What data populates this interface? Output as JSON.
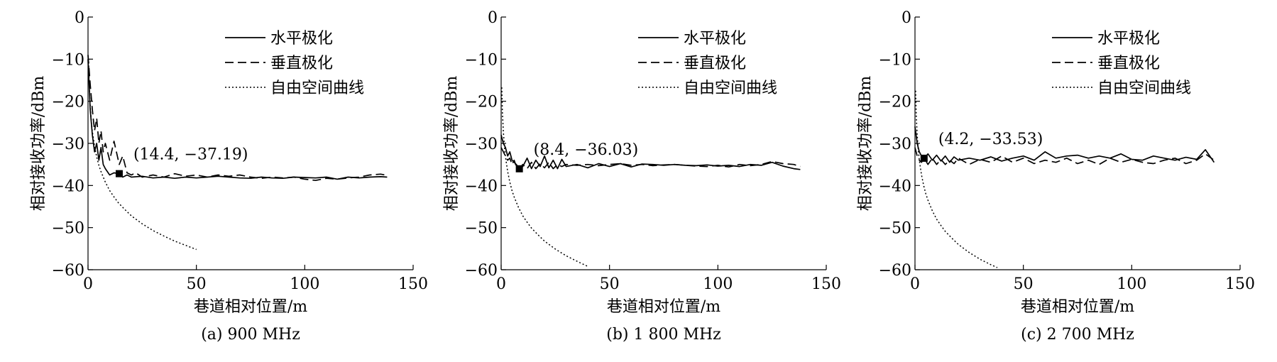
{
  "chart_data": [
    {
      "type": "line",
      "caption": "(a)  900 MHz",
      "xlabel": "巷道相对位置/m",
      "ylabel": "相对接收功率/dBm",
      "xlim": [
        0,
        150
      ],
      "ylim": [
        -60,
        0
      ],
      "xticks": [
        "0",
        "50",
        "100",
        "150"
      ],
      "yticks": [
        "0",
        "−10",
        "−20",
        "−30",
        "−40",
        "−50",
        "−60"
      ],
      "legend_position": "top-right",
      "annotation": {
        "text": "(14.4, −37.19)",
        "x": 14.4,
        "y": -37.19
      },
      "series": [
        {
          "name": "水平极化",
          "style": "solid",
          "x": [
            0,
            1,
            2,
            3,
            4,
            5,
            6,
            7,
            8,
            10,
            12,
            14.4,
            16,
            18,
            20,
            25,
            30,
            35,
            40,
            45,
            50,
            55,
            60,
            65,
            70,
            75,
            80,
            85,
            90,
            95,
            100,
            105,
            110,
            115,
            120,
            125,
            130,
            135,
            138
          ],
          "y": [
            -10,
            -22,
            -28,
            -32,
            -30,
            -34,
            -31,
            -35,
            -36,
            -37.5,
            -37,
            -37.19,
            -38,
            -37.5,
            -38,
            -37.8,
            -38.2,
            -38,
            -38.3,
            -38,
            -38.2,
            -38,
            -37.8,
            -38,
            -38.2,
            -38.3,
            -38,
            -38.2,
            -38.3,
            -38,
            -38.1,
            -38.2,
            -38,
            -38.5,
            -38,
            -38.2,
            -38,
            -37.9,
            -38
          ]
        },
        {
          "name": "垂直极化",
          "style": "dashed",
          "x": [
            0,
            1,
            2,
            3,
            4,
            5,
            6,
            7,
            8,
            10,
            12,
            14.4,
            16,
            18,
            20,
            22,
            25,
            30,
            35,
            40,
            45,
            50,
            55,
            60,
            65,
            70,
            75,
            80,
            85,
            90,
            95,
            100,
            105,
            110,
            115,
            120,
            125,
            130,
            135,
            138
          ],
          "y": [
            -9,
            -16,
            -22,
            -27,
            -24,
            -30,
            -27,
            -32,
            -30,
            -34,
            -29.5,
            -35,
            -33,
            -37,
            -37.5,
            -37,
            -38,
            -37.5,
            -38,
            -37.2,
            -37.8,
            -37.5,
            -38,
            -37.5,
            -37.8,
            -37.5,
            -38,
            -38.3,
            -38,
            -38.2,
            -38,
            -38.5,
            -38.8,
            -38.3,
            -38.5,
            -38.2,
            -38,
            -37.5,
            -37.3,
            -37.6
          ]
        },
        {
          "name": "自由空间曲线",
          "style": "dotted",
          "x": [
            0.3,
            0.6,
            1,
            1.5,
            2,
            3,
            4,
            5,
            6,
            8,
            10,
            12,
            14,
            17,
            20,
            25,
            30,
            35,
            40,
            45,
            50
          ],
          "y": [
            -10.7,
            -16.7,
            -21.2,
            -24.7,
            -27.2,
            -30.7,
            -33.2,
            -35.2,
            -36.7,
            -39.2,
            -41.2,
            -42.7,
            -44.1,
            -45.7,
            -47.2,
            -49.1,
            -50.7,
            -52.0,
            -53.2,
            -54.2,
            -55.2
          ]
        }
      ]
    },
    {
      "type": "line",
      "caption": "(b)  1 800 MHz",
      "xlabel": "巷道相对位置/m",
      "ylabel": "相对接收功率/dBm",
      "xlim": [
        0,
        150
      ],
      "ylim": [
        -60,
        0
      ],
      "xticks": [
        "0",
        "50",
        "100",
        "150"
      ],
      "yticks": [
        "0",
        "−10",
        "−20",
        "−30",
        "−40",
        "−50",
        "−60"
      ],
      "legend_position": "top-right",
      "annotation": {
        "text": "(8.4, −36.03)",
        "x": 8.4,
        "y": -36.03
      },
      "series": [
        {
          "name": "水平极化",
          "style": "solid",
          "x": [
            0,
            1,
            2,
            3,
            4,
            5,
            6,
            7,
            8.4,
            10,
            12,
            14,
            16,
            18,
            20,
            22,
            24,
            26,
            28,
            30,
            35,
            40,
            45,
            50,
            55,
            60,
            65,
            70,
            75,
            80,
            85,
            90,
            95,
            100,
            105,
            110,
            115,
            120,
            125,
            130,
            135,
            138
          ],
          "y": [
            -28,
            -30,
            -31,
            -33,
            -32,
            -34,
            -34.5,
            -35,
            -36.03,
            -35.5,
            -33.5,
            -36,
            -34,
            -35.5,
            -33,
            -35.8,
            -34,
            -36,
            -33.8,
            -35.5,
            -35,
            -35.8,
            -34.8,
            -35.5,
            -34.8,
            -35.6,
            -34.9,
            -35,
            -35.2,
            -35,
            -35.2,
            -35.3,
            -35.1,
            -35.4,
            -35.2,
            -35.5,
            -35,
            -35.2,
            -34.5,
            -35.4,
            -36,
            -36.2
          ]
        },
        {
          "name": "垂直极化",
          "style": "dashed",
          "x": [
            0,
            1,
            2,
            3,
            4,
            5,
            6,
            7,
            8.4,
            10,
            12,
            14,
            16,
            18,
            20,
            22,
            24,
            26,
            28,
            30,
            35,
            40,
            45,
            50,
            55,
            60,
            65,
            70,
            75,
            80,
            85,
            90,
            95,
            100,
            105,
            110,
            115,
            120,
            125,
            130,
            135,
            138
          ],
          "y": [
            -31,
            -32,
            -33,
            -34,
            -33.5,
            -35,
            -34,
            -35.5,
            -36.03,
            -35,
            -36,
            -34.5,
            -36,
            -34.8,
            -35.8,
            -34.5,
            -36,
            -35,
            -35.5,
            -35,
            -35.2,
            -35,
            -35.3,
            -35,
            -34.8,
            -35.2,
            -35,
            -35.3,
            -35.1,
            -35,
            -35.2,
            -35.4,
            -35.5,
            -35.2,
            -35.6,
            -35,
            -35.3,
            -35,
            -34.3,
            -34.8,
            -35,
            -35.5
          ]
        },
        {
          "name": "自由空间曲线",
          "style": "dotted",
          "x": [
            0.3,
            0.6,
            1,
            1.5,
            2,
            3,
            4,
            5,
            6,
            8,
            10,
            12,
            14,
            17,
            20,
            25,
            30,
            35,
            40
          ],
          "y": [
            -16.7,
            -22.7,
            -27.2,
            -30.7,
            -33.2,
            -36.7,
            -39.2,
            -41.2,
            -42.7,
            -45.2,
            -47.2,
            -48.7,
            -50.1,
            -51.7,
            -53.2,
            -55.1,
            -56.7,
            -58.0,
            -59.2
          ]
        }
      ]
    },
    {
      "type": "line",
      "caption": "(c)  2 700 MHz",
      "xlabel": "巷道相对位置/m",
      "ylabel": "相对接收功率/dBm",
      "xlim": [
        0,
        150
      ],
      "ylim": [
        -60,
        0
      ],
      "xticks": [
        "0",
        "50",
        "100",
        "150"
      ],
      "yticks": [
        "0",
        "−10",
        "−20",
        "−30",
        "−40",
        "−50",
        "−60"
      ],
      "legend_position": "top-right",
      "annotation": {
        "text": "(4.2, −33.53)",
        "x": 4.2,
        "y": -33.53
      },
      "series": [
        {
          "name": "水平极化",
          "style": "solid",
          "x": [
            0,
            1,
            2,
            3,
            4.2,
            6,
            8,
            10,
            12,
            14,
            16,
            18,
            20,
            25,
            30,
            35,
            40,
            45,
            50,
            55,
            60,
            65,
            70,
            75,
            80,
            85,
            90,
            95,
            100,
            105,
            110,
            115,
            120,
            125,
            130,
            134,
            138
          ],
          "y": [
            -26,
            -30,
            -32,
            -33,
            -33.53,
            -32.5,
            -34,
            -32.8,
            -34.2,
            -33,
            -34.5,
            -33.2,
            -34,
            -33.5,
            -34,
            -33.2,
            -34.2,
            -33.5,
            -33,
            -34,
            -32,
            -33.5,
            -33,
            -32.8,
            -33.5,
            -33,
            -33.5,
            -32.5,
            -33.8,
            -34,
            -33,
            -33.5,
            -34,
            -33.3,
            -33.8,
            -31.5,
            -34.5
          ]
        },
        {
          "name": "垂直极化",
          "style": "dashed",
          "x": [
            0,
            1,
            2,
            3,
            4.2,
            6,
            8,
            10,
            12,
            14,
            16,
            18,
            20,
            25,
            30,
            35,
            40,
            45,
            50,
            55,
            60,
            65,
            70,
            75,
            80,
            85,
            90,
            95,
            100,
            105,
            110,
            115,
            120,
            125,
            130,
            134,
            138
          ],
          "y": [
            -31,
            -33,
            -34,
            -34.5,
            -33.53,
            -35,
            -33.5,
            -35,
            -33.8,
            -35,
            -34,
            -34.8,
            -33.5,
            -35,
            -33.8,
            -34.5,
            -33,
            -34.5,
            -33.5,
            -34.8,
            -34,
            -34.5,
            -33.5,
            -34.8,
            -34,
            -35,
            -33.5,
            -34.5,
            -33.8,
            -34.5,
            -34.8,
            -34,
            -33.5,
            -34.8,
            -34,
            -32.5,
            -34
          ]
        },
        {
          "name": "自由空间曲线",
          "style": "dotted",
          "x": [
            0.3,
            0.6,
            1,
            1.5,
            2,
            3,
            4,
            5,
            6,
            8,
            10,
            12,
            14,
            17,
            20,
            25,
            30,
            35,
            38
          ],
          "y": [
            -17.5,
            -23.5,
            -28,
            -31.5,
            -34,
            -37.5,
            -40,
            -42,
            -43.5,
            -46,
            -48,
            -49.5,
            -50.9,
            -52.5,
            -54,
            -55.9,
            -57.5,
            -58.8,
            -59.5
          ]
        }
      ]
    }
  ]
}
